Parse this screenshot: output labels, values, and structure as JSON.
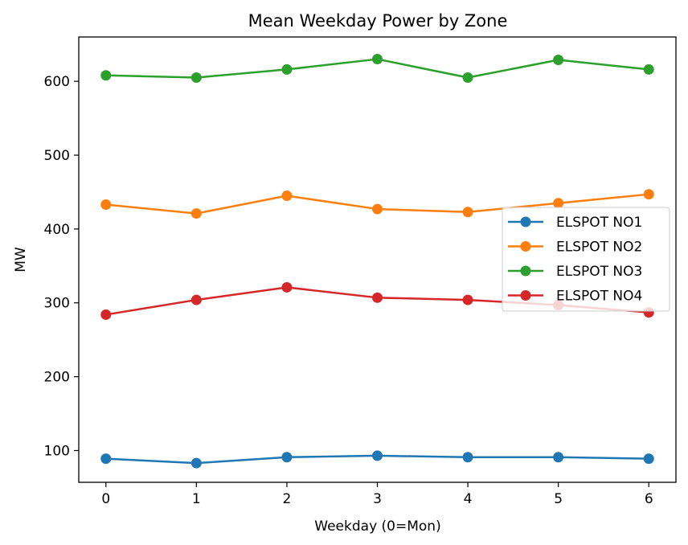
{
  "chart_data": {
    "type": "line",
    "title": "Mean Weekday Power by Zone",
    "xlabel": "Weekday (0=Mon)",
    "ylabel": "MW",
    "x": [
      0,
      1,
      2,
      3,
      4,
      5,
      6
    ],
    "xticks": [
      "0",
      "1",
      "2",
      "3",
      "4",
      "5",
      "6"
    ],
    "yticks": [
      "100",
      "200",
      "300",
      "400",
      "500",
      "600"
    ],
    "xlim": [
      -0.3,
      6.3
    ],
    "ylim": [
      57,
      660
    ],
    "grid": false,
    "legend_position": "center-right",
    "series": [
      {
        "name": "ELSPOT NO1",
        "color": "#1f77b4",
        "values": [
          89,
          83,
          91,
          93,
          91,
          91,
          89
        ]
      },
      {
        "name": "ELSPOT NO2",
        "color": "#ff7f0e",
        "values": [
          433,
          421,
          445,
          427,
          423,
          435,
          447
        ]
      },
      {
        "name": "ELSPOT NO3",
        "color": "#2ca02c",
        "values": [
          608,
          605,
          616,
          630,
          605,
          629,
          616
        ]
      },
      {
        "name": "ELSPOT NO4",
        "color": "#d62728",
        "values": [
          284,
          304,
          321,
          307,
          304,
          297,
          287
        ]
      }
    ]
  }
}
